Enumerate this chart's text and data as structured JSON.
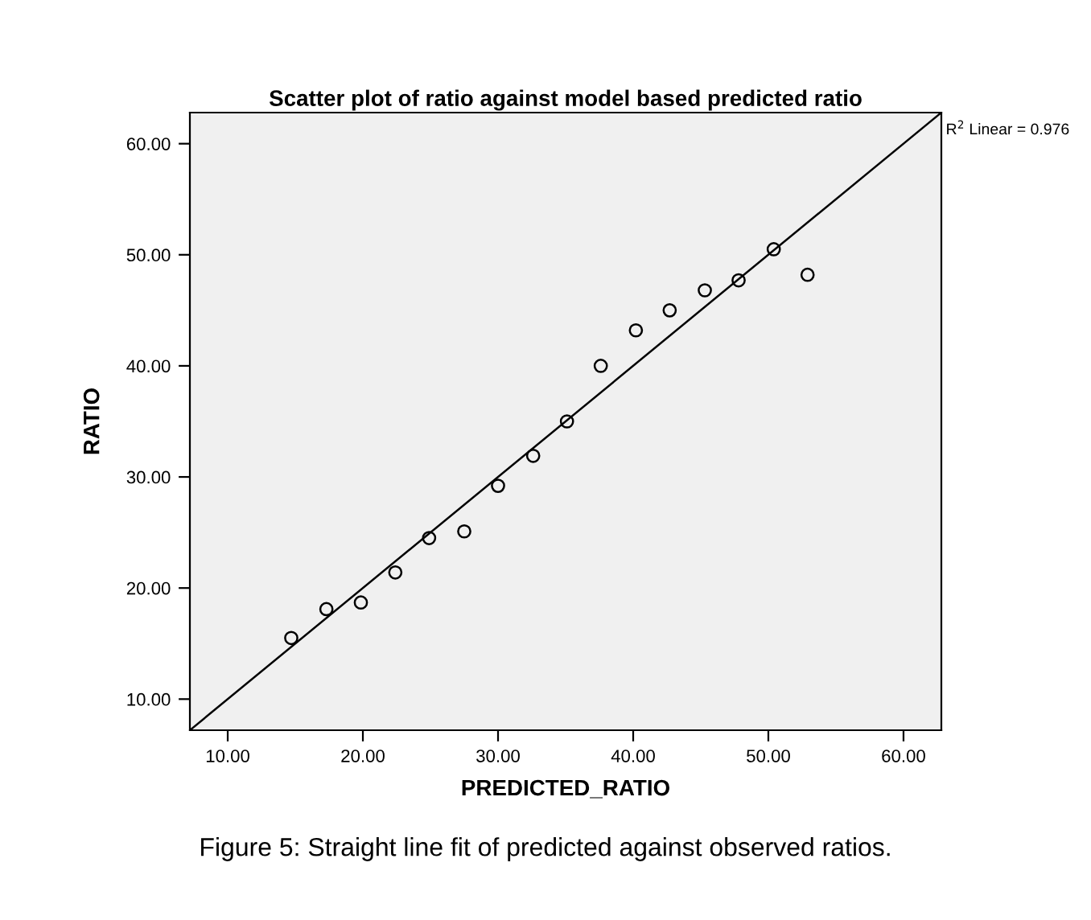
{
  "chart_data": {
    "type": "scatter",
    "title": "Scatter plot of ratio against model based predicted ratio",
    "xlabel": "PREDICTED_RATIO",
    "ylabel": "RATIO",
    "annotations": [
      {
        "text": "R$^{2}$ Linear = 0.976",
        "x": 62.8,
        "y": 62.8
      },
      "Figure 5: Straight line fit of predicted against observed ratios."
    ],
    "x": [
      14.7,
      17.3,
      19.85,
      22.4,
      24.9,
      27.5,
      30.0,
      32.6,
      35.1,
      37.6,
      40.2,
      42.7,
      45.3,
      47.8,
      50.4,
      52.9
    ],
    "series": [
      {
        "color": "#000000",
        "marker": "circle",
        "values": [
          15.5,
          18.1,
          18.7,
          21.4,
          24.5,
          25.1,
          29.2,
          31.9,
          35.0,
          40.0,
          43.2,
          45.0,
          46.8,
          47.7,
          50.5,
          48.2
        ]
      },
      {
        "type": "line",
        "color": "#000000",
        "x": [
          7.2,
          62.8
        ],
        "values": [
          7.2,
          62.8
        ],
        "line_style": "solid"
      }
    ],
    "xlim": [
      7.2,
      62.8
    ],
    "ylim": [
      7.2,
      62.8
    ],
    "xticks": [
      {
        "value": 10,
        "label": "10.00"
      },
      {
        "value": 20,
        "label": "20.00"
      },
      {
        "value": 30,
        "label": "30.00"
      },
      {
        "value": 40,
        "label": "40.00"
      },
      {
        "value": 50,
        "label": "50.00"
      },
      {
        "value": 60,
        "label": "60.00"
      }
    ],
    "yticks": [
      {
        "value": 10,
        "label": "10.00"
      },
      {
        "value": 20,
        "label": "20.00"
      },
      {
        "value": 30,
        "label": "30.00"
      },
      {
        "value": 40,
        "label": "40.00"
      },
      {
        "value": 50,
        "label": "50.00"
      },
      {
        "value": 60,
        "label": "60.00"
      }
    ],
    "grid": false,
    "legend": false
  }
}
